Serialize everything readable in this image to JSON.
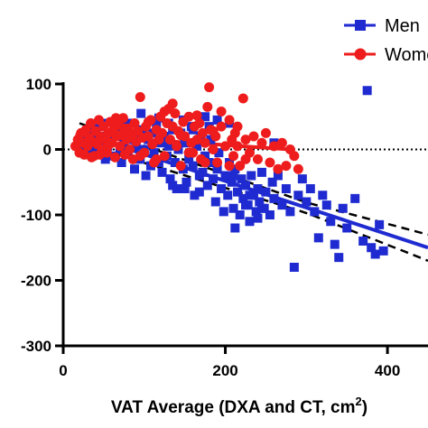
{
  "chart_data": {
    "type": "scatter",
    "xlabel_main": "VAT Average (DXA and CT, cm",
    "xlabel_sup": "2",
    "xlabel_close": ")",
    "xlim": [
      0,
      450
    ],
    "ylim": [
      -300,
      100
    ],
    "x_ticks": [
      {
        "value": 0,
        "label": "0"
      },
      {
        "value": 200,
        "label": "200"
      },
      {
        "value": 400,
        "label": "400"
      }
    ],
    "y_ticks": [
      {
        "value": 100,
        "label": "100"
      },
      {
        "value": 0,
        "label": "0"
      },
      {
        "value": -100,
        "label": "-100"
      },
      {
        "value": -200,
        "label": "-200"
      },
      {
        "value": -300,
        "label": "-300"
      }
    ],
    "zero_reference_line": true,
    "legend": {
      "placement": "top-right"
    },
    "colors": {
      "men": "#1f2bd0",
      "women": "#ee1c1c",
      "axis": "#000000"
    },
    "series": [
      {
        "name": "Men",
        "marker": "square",
        "color": "#1f2bd0",
        "points": [
          [
            20,
            10
          ],
          [
            25,
            5
          ],
          [
            28,
            20
          ],
          [
            30,
            30
          ],
          [
            32,
            -5
          ],
          [
            35,
            15
          ],
          [
            38,
            25
          ],
          [
            40,
            0
          ],
          [
            42,
            35
          ],
          [
            45,
            10
          ],
          [
            48,
            20
          ],
          [
            50,
            40
          ],
          [
            52,
            -15
          ],
          [
            55,
            5
          ],
          [
            58,
            25
          ],
          [
            60,
            15
          ],
          [
            62,
            -10
          ],
          [
            65,
            30
          ],
          [
            68,
            20
          ],
          [
            70,
            0
          ],
          [
            72,
            -20
          ],
          [
            75,
            10
          ],
          [
            78,
            35
          ],
          [
            80,
            -5
          ],
          [
            82,
            25
          ],
          [
            85,
            15
          ],
          [
            88,
            -30
          ],
          [
            90,
            5
          ],
          [
            92,
            20
          ],
          [
            95,
            -15
          ],
          [
            98,
            30
          ],
          [
            100,
            0
          ],
          [
            102,
            -40
          ],
          [
            105,
            15
          ],
          [
            108,
            -25
          ],
          [
            110,
            25
          ],
          [
            112,
            -5
          ],
          [
            115,
            35
          ],
          [
            118,
            -20
          ],
          [
            120,
            10
          ],
          [
            122,
            -35
          ],
          [
            125,
            20
          ],
          [
            128,
            -10
          ],
          [
            130,
            5
          ],
          [
            132,
            -45
          ],
          [
            135,
            30
          ],
          [
            138,
            -20
          ],
          [
            140,
            -60
          ],
          [
            142,
            0
          ],
          [
            145,
            25
          ],
          [
            148,
            -30
          ],
          [
            150,
            10
          ],
          [
            152,
            -50
          ],
          [
            155,
            -15
          ],
          [
            158,
            35
          ],
          [
            160,
            -25
          ],
          [
            162,
            -70
          ],
          [
            165,
            5
          ],
          [
            168,
            -40
          ],
          [
            170,
            20
          ],
          [
            172,
            -35
          ],
          [
            175,
            -10
          ],
          [
            178,
            -55
          ],
          [
            180,
            -20
          ],
          [
            182,
            15
          ],
          [
            185,
            -45
          ],
          [
            188,
            -80
          ],
          [
            190,
            -30
          ],
          [
            192,
            -5
          ],
          [
            195,
            -60
          ],
          [
            198,
            -95
          ],
          [
            200,
            -40
          ],
          [
            203,
            -70
          ],
          [
            205,
            -20
          ],
          [
            208,
            -50
          ],
          [
            210,
            -90
          ],
          [
            212,
            -30
          ],
          [
            215,
            -65
          ],
          [
            218,
            -100
          ],
          [
            220,
            -45
          ],
          [
            222,
            -75
          ],
          [
            225,
            -55
          ],
          [
            228,
            -85
          ],
          [
            230,
            -110
          ],
          [
            232,
            -40
          ],
          [
            235,
            -70
          ],
          [
            238,
            -95
          ],
          [
            240,
            -60
          ],
          [
            242,
            -80
          ],
          [
            245,
            -35
          ],
          [
            248,
            -90
          ],
          [
            250,
            -65
          ],
          [
            255,
            -100
          ],
          [
            258,
            -50
          ],
          [
            260,
            -75
          ],
          [
            265,
            -40
          ],
          [
            270,
            -85
          ],
          [
            275,
            -60
          ],
          [
            280,
            -95
          ],
          [
            285,
            -180
          ],
          [
            290,
            -70
          ],
          [
            295,
            -45
          ],
          [
            300,
            -80
          ],
          [
            305,
            -60
          ],
          [
            310,
            -95
          ],
          [
            315,
            -135
          ],
          [
            320,
            -70
          ],
          [
            325,
            -85
          ],
          [
            330,
            -110
          ],
          [
            335,
            -145
          ],
          [
            340,
            -165
          ],
          [
            345,
            -90
          ],
          [
            350,
            -120
          ],
          [
            360,
            -75
          ],
          [
            370,
            -140
          ],
          [
            375,
            90
          ],
          [
            380,
            -150
          ],
          [
            385,
            -160
          ],
          [
            390,
            -115
          ],
          [
            395,
            -155
          ],
          [
            83,
            40
          ],
          [
            96,
            55
          ],
          [
            118,
            48
          ],
          [
            135,
            -55
          ],
          [
            168,
            -65
          ],
          [
            205,
            40
          ],
          [
            150,
            -60
          ],
          [
            180,
            35
          ],
          [
            190,
            45
          ],
          [
            240,
            -105
          ],
          [
            130,
            40
          ],
          [
            260,
            10
          ],
          [
            148,
            45
          ],
          [
            225,
            -85
          ],
          [
            160,
            30
          ],
          [
            175,
            50
          ],
          [
            210,
            -40
          ],
          [
            230,
            -70
          ],
          [
            245,
            -90
          ],
          [
            212,
            -120
          ]
        ]
      },
      {
        "name": "Women",
        "marker": "circle",
        "color": "#ee1c1c",
        "points": [
          [
            15,
            5
          ],
          [
            18,
            15
          ],
          [
            20,
            -5
          ],
          [
            22,
            25
          ],
          [
            24,
            10
          ],
          [
            26,
            -8
          ],
          [
            28,
            30
          ],
          [
            30,
            5
          ],
          [
            32,
            18
          ],
          [
            34,
            40
          ],
          [
            36,
            12
          ],
          [
            38,
            -10
          ],
          [
            40,
            28
          ],
          [
            42,
            8
          ],
          [
            44,
            45
          ],
          [
            46,
            20
          ],
          [
            48,
            0
          ],
          [
            50,
            35
          ],
          [
            52,
            15
          ],
          [
            54,
            -5
          ],
          [
            56,
            25
          ],
          [
            58,
            42
          ],
          [
            60,
            10
          ],
          [
            62,
            30
          ],
          [
            64,
            -12
          ],
          [
            66,
            20
          ],
          [
            68,
            38
          ],
          [
            70,
            5
          ],
          [
            72,
            22
          ],
          [
            74,
            48
          ],
          [
            76,
            -8
          ],
          [
            78,
            15
          ],
          [
            80,
            32
          ],
          [
            82,
            0
          ],
          [
            84,
            25
          ],
          [
            86,
            -15
          ],
          [
            88,
            40
          ],
          [
            90,
            12
          ],
          [
            92,
            28
          ],
          [
            95,
            80
          ],
          [
            98,
            18
          ],
          [
            100,
            -5
          ],
          [
            102,
            35
          ],
          [
            105,
            20
          ],
          [
            108,
            45
          ],
          [
            110,
            8
          ],
          [
            112,
            -20
          ],
          [
            115,
            30
          ],
          [
            118,
            15
          ],
          [
            120,
            50
          ],
          [
            122,
            25
          ],
          [
            125,
            -10
          ],
          [
            128,
            40
          ],
          [
            130,
            62
          ],
          [
            132,
            15
          ],
          [
            135,
            35
          ],
          [
            138,
            55
          ],
          [
            140,
            5
          ],
          [
            142,
            28
          ],
          [
            145,
            -25
          ],
          [
            148,
            42
          ],
          [
            150,
            20
          ],
          [
            155,
            50
          ],
          [
            158,
            10
          ],
          [
            160,
            -5
          ],
          [
            162,
            35
          ],
          [
            165,
            15
          ],
          [
            168,
            40
          ],
          [
            170,
            -15
          ],
          [
            172,
            25
          ],
          [
            175,
            10
          ],
          [
            178,
            65
          ],
          [
            180,
            95
          ],
          [
            182,
            30
          ],
          [
            185,
            0
          ],
          [
            188,
            20
          ],
          [
            190,
            -20
          ],
          [
            195,
            35
          ],
          [
            200,
            5
          ],
          [
            205,
            45
          ],
          [
            208,
            15
          ],
          [
            210,
            -10
          ],
          [
            212,
            25
          ],
          [
            215,
            5
          ],
          [
            218,
            -25
          ],
          [
            222,
            78
          ],
          [
            225,
            15
          ],
          [
            230,
            -5
          ],
          [
            235,
            20
          ],
          [
            240,
            -15
          ],
          [
            245,
            10
          ],
          [
            250,
            25
          ],
          [
            255,
            -20
          ],
          [
            260,
            5
          ],
          [
            265,
            -30
          ],
          [
            270,
            10
          ],
          [
            275,
            -25
          ],
          [
            280,
            0
          ],
          [
            285,
            -10
          ],
          [
            290,
            -30
          ],
          [
            35,
            -12
          ],
          [
            45,
            -8
          ],
          [
            55,
            5
          ],
          [
            65,
            48
          ],
          [
            75,
            32
          ],
          [
            85,
            18
          ],
          [
            95,
            -10
          ],
          [
            105,
            42
          ],
          [
            115,
            -15
          ],
          [
            125,
            58
          ],
          [
            135,
            70
          ],
          [
            145,
            22
          ],
          [
            155,
            -5
          ],
          [
            165,
            52
          ],
          [
            175,
            -20
          ],
          [
            185,
            28
          ],
          [
            195,
            58
          ],
          [
            205,
            -25
          ],
          [
            215,
            35
          ],
          [
            225,
            -15
          ]
        ]
      }
    ],
    "fit_lines": [
      {
        "series": "Men",
        "color": "#1f2bd0",
        "x": [
          20,
          450
        ],
        "y": [
          25,
          -150
        ],
        "band_at_x": [
          [
            20,
            15
          ],
          [
            300,
            8
          ],
          [
            450,
            20
          ]
        ]
      },
      {
        "series": "Women",
        "color": "#ee1c1c",
        "x": [
          15,
          280
        ],
        "y": [
          22,
          0
        ]
      }
    ]
  }
}
